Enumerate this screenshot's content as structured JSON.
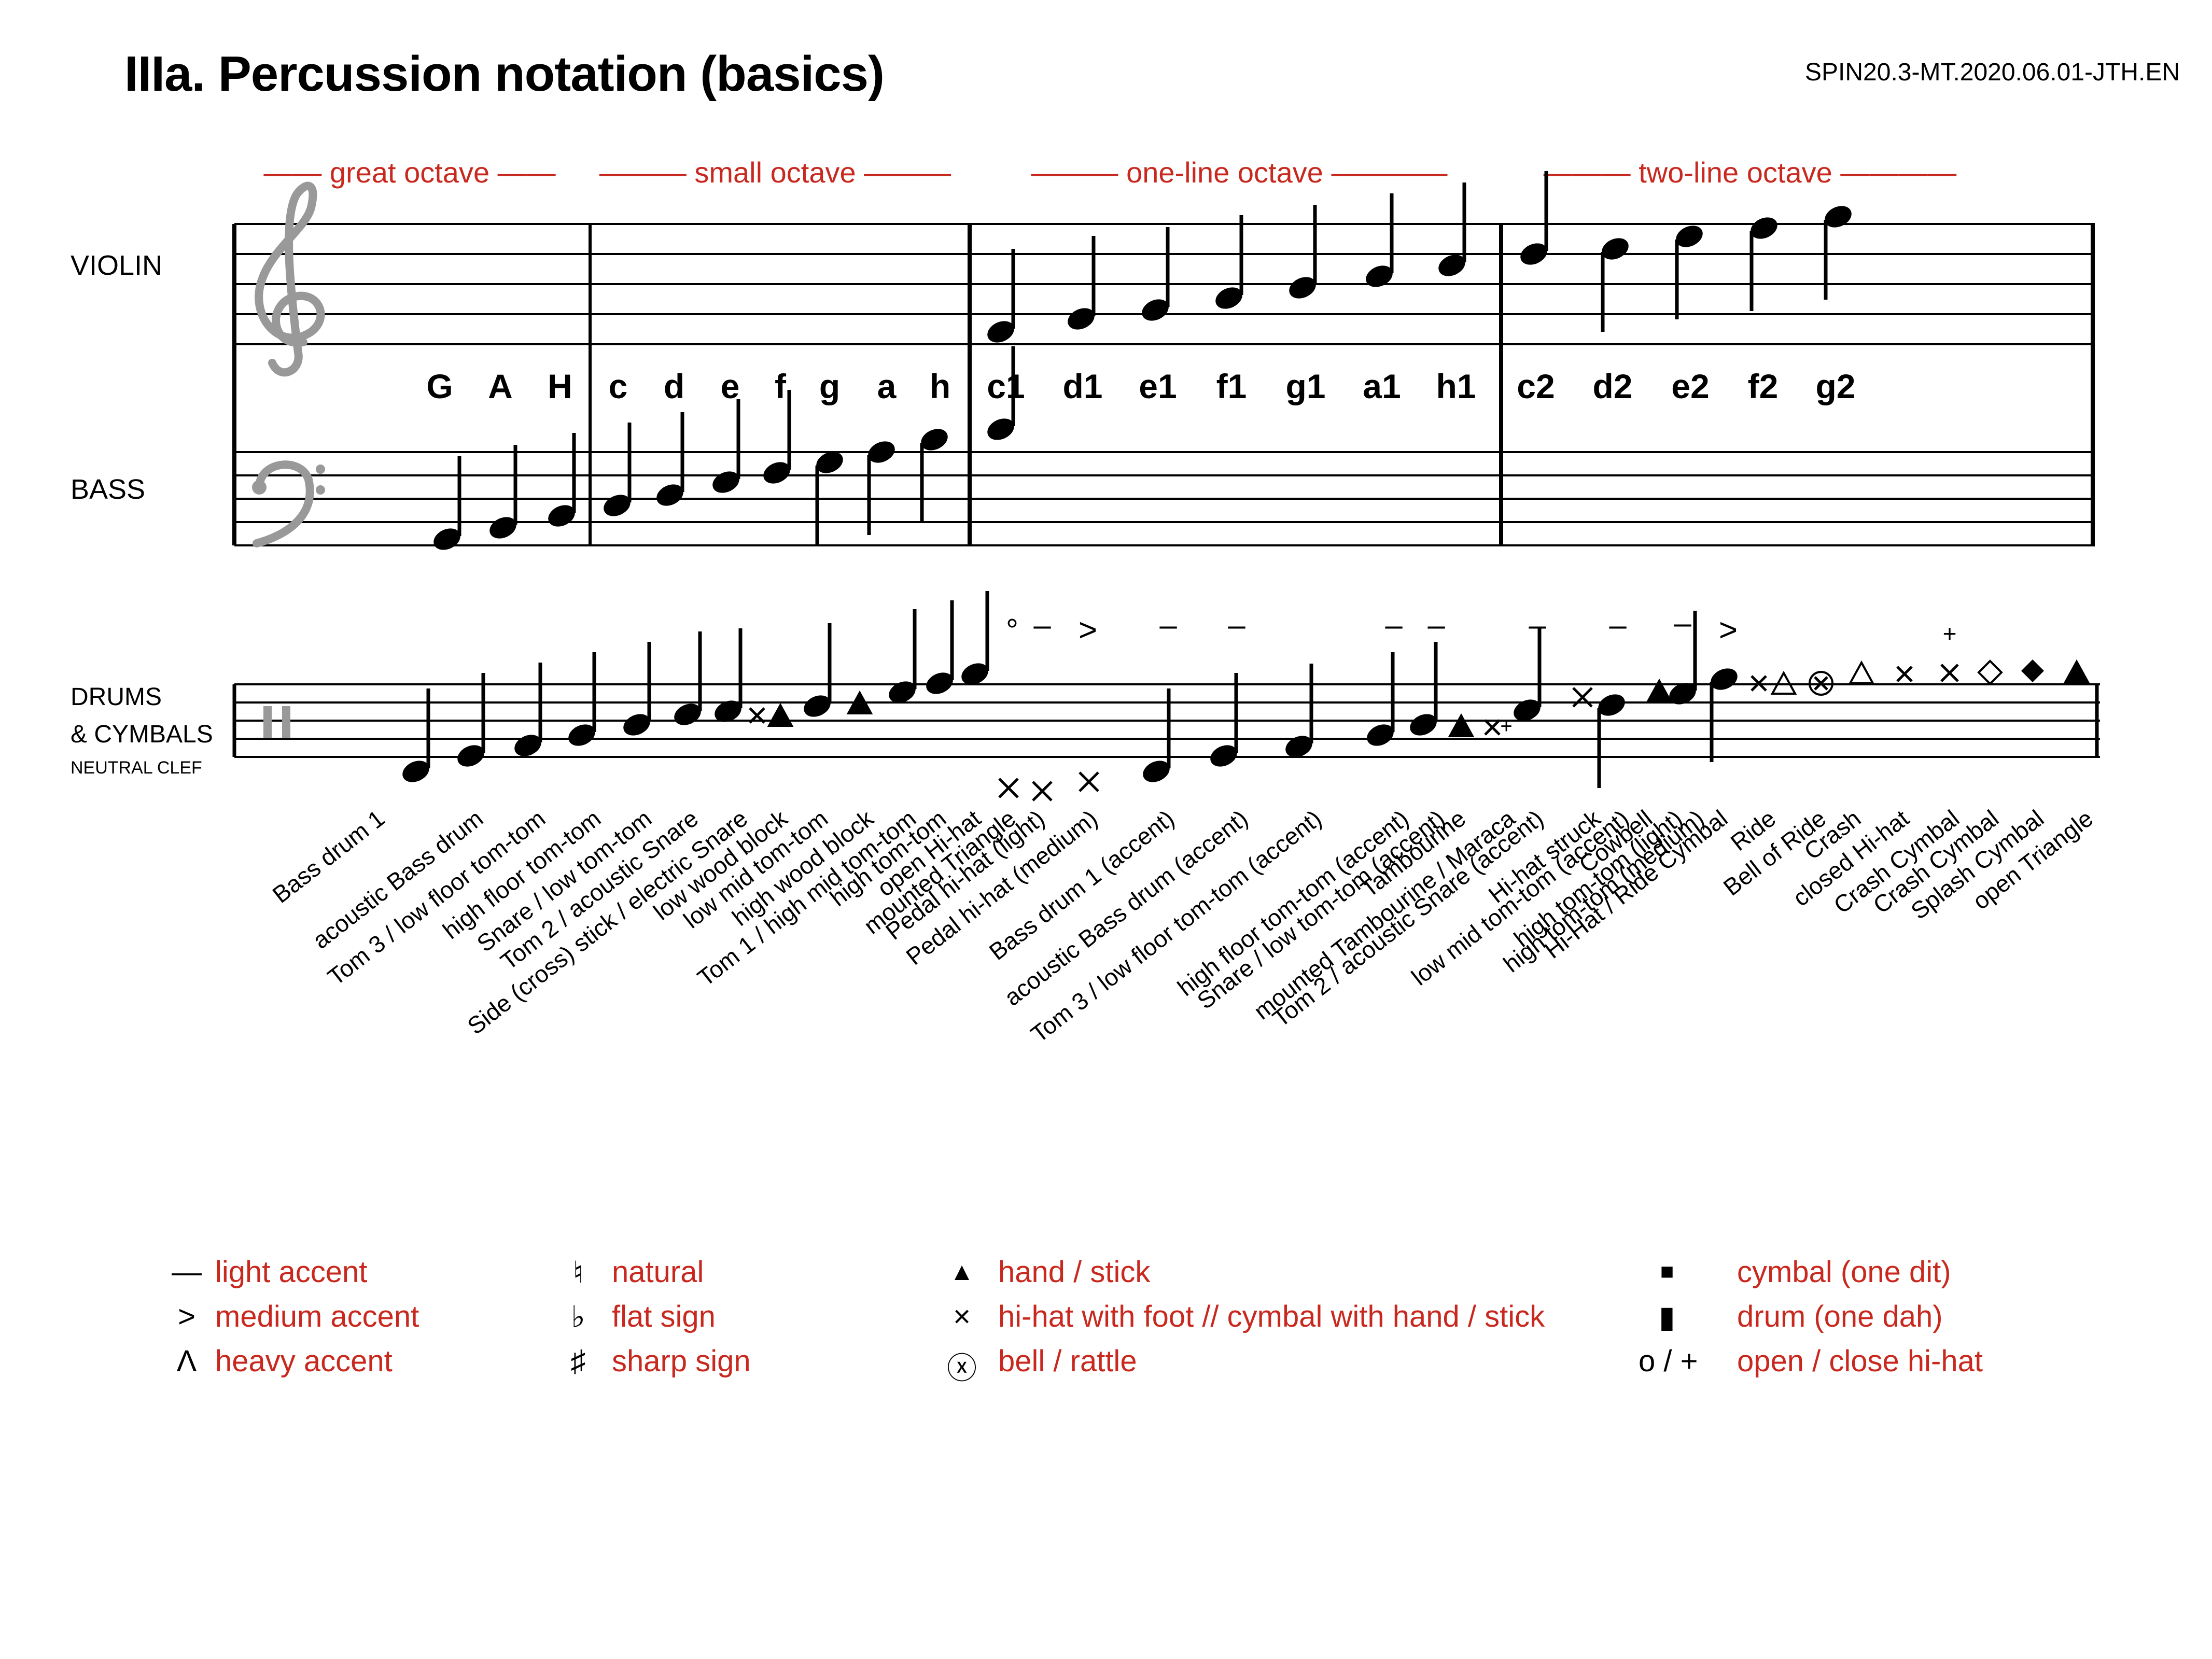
{
  "title": "IIIa. Percussion notation (basics)",
  "doc_id": "SPIN20.3-MT.2020.06.01-JTH.EN",
  "colors": {
    "accent": "#c8281e",
    "ink": "#000000",
    "clef_gray": "#999999"
  },
  "octaves": [
    {
      "label": "—— great octave ——"
    },
    {
      "label": "——— small octave ———"
    },
    {
      "label": "——— one-line octave ————"
    },
    {
      "label": "——— two-line octave ————"
    }
  ],
  "staff_labels": {
    "violin": "VIOLIN",
    "bass": "BASS",
    "drums_1": "DRUMS",
    "drums_2": "& CYMBALS",
    "neutral_clef": "NEUTRAL CLEF"
  },
  "note_names": [
    "G",
    "A",
    "H",
    "c",
    "d",
    "e",
    "f",
    "g",
    "a",
    "h",
    "c1",
    "d1",
    "e1",
    "f1",
    "g1",
    "a1",
    "h1",
    "c2",
    "d2",
    "e2",
    "f2",
    "g2"
  ],
  "instruments": [
    "Bass drum 1",
    "acoustic Bass drum",
    "Tom 3 / low floor tom-tom",
    "high floor tom-tom",
    "Snare / low tom-tom",
    "Tom 2 / acoustic Snare",
    "Side (cross) stick / electric Snare",
    "low wood block",
    "low mid tom-tom",
    "high wood block",
    "Tom 1 / high mid tom-tom",
    "high  tom-tom",
    "open Hi-hat",
    "mounted Triangle",
    "Pedal hi-hat (light)",
    "Pedal hi-hat (medium)",
    "Bass drum 1 (accent)",
    "acoustic Bass drum (accent)",
    "Tom 3 / low floor tom-tom (accent)",
    "high floor tom-tom (accent)",
    "Snare / low tom-tom (accent)",
    "Tambourine",
    "mounted Tambourine / Maraca",
    "Tom 2 / acoustic Snare (accent)",
    "Hi-hat struck",
    "low mid tom-tom (accent)",
    "Cowbell",
    "high tom-tom (light)",
    "high tom-tom (medium)",
    "Hi-Hat / Ride Cymbal",
    "Ride",
    "Bell of Ride",
    "Crash",
    "closed Hi-hat",
    "Crash Cymbal",
    "Crash Cymbal",
    "Splash Cymbal",
    "open Triangle"
  ],
  "legend": {
    "col1": [
      {
        "symbol": "—",
        "label": "light accent"
      },
      {
        "symbol": ">",
        "label": "medium accent"
      },
      {
        "symbol": "Λ",
        "label": "heavy accent"
      }
    ],
    "col2": [
      {
        "symbol": "♮",
        "label": "natural"
      },
      {
        "symbol": "♭",
        "label": "flat sign"
      },
      {
        "symbol": "♯",
        "label": "sharp sign"
      }
    ],
    "col3": [
      {
        "symbol": "▲",
        "label": "hand / stick"
      },
      {
        "symbol": "×",
        "label": "hi-hat with foot // cymbal with hand / stick"
      },
      {
        "symbol": "ⓧ",
        "label": "bell / rattle"
      }
    ],
    "col4": [
      {
        "symbol": "■",
        "label": "cymbal (one dit)"
      },
      {
        "symbol": "▮",
        "label": "drum (one dah)"
      },
      {
        "symbol": "o / +",
        "label": "open / close hi-hat"
      }
    ]
  }
}
